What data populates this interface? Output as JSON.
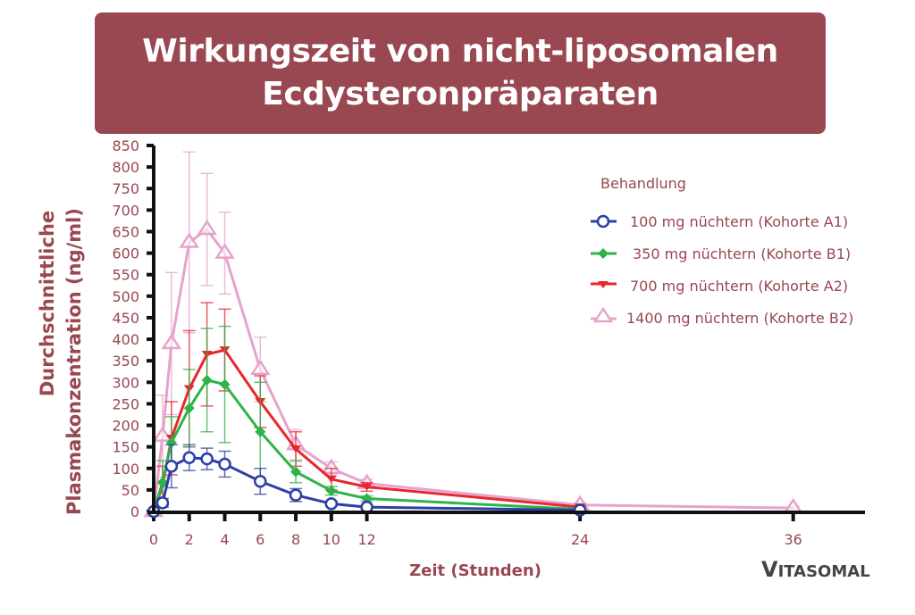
{
  "title": {
    "line1": "Wirkungszeit von nicht-liposomalen",
    "line2": "Ecdysteronpräparaten"
  },
  "axes": {
    "ylabel_line1": "Durchschnittliche",
    "ylabel_line2": "Plasmakonzentration (ng/ml)",
    "xlabel": "Zeit (Stunden)",
    "yticks": [
      "0",
      "50",
      "100",
      "150",
      "200",
      "250",
      "300",
      "350",
      "400",
      "450",
      "500",
      "550",
      "600",
      "650",
      "700",
      "750",
      "800",
      "850"
    ],
    "xticks": [
      "0",
      "2",
      "4",
      "6",
      "8",
      "10",
      "12",
      "24",
      "36"
    ]
  },
  "legend": {
    "title": "Behandlung",
    "items": [
      {
        "label": "100 mg nüchtern (Kohorte A1)",
        "color": "#2b3fa6",
        "marker": "circle"
      },
      {
        "label": "350 mg nüchtern (Kohorte B1)",
        "color": "#2fb34a",
        "marker": "diamond"
      },
      {
        "label": "700 mg nüchtern (Kohorte A2)",
        "color": "#e8262d",
        "marker": "triangle-down"
      },
      {
        "label": "1400 mg nüchtern (Kohorte B2)",
        "color": "#e6a3cc",
        "marker": "triangle-up"
      }
    ]
  },
  "brand": {
    "logo": "VITASOMAL"
  },
  "chart_data": {
    "type": "line",
    "title": "Wirkungszeit von nicht-liposomalen Ecdysteronpräparaten",
    "xlabel": "Zeit (Stunden)",
    "ylabel": "Durchschnittliche Plasmakonzentration (ng/ml)",
    "xlim": [
      0,
      40
    ],
    "ylim": [
      0,
      850
    ],
    "grid": false,
    "legend_position": "upper right",
    "legend_title": "Behandlung",
    "series": [
      {
        "name": "100 mg nüchtern (Kohorte A1)",
        "color": "#2b3fa6",
        "x": [
          0,
          0.5,
          1,
          2,
          3,
          4,
          6,
          8,
          10,
          12,
          24
        ],
        "y": [
          0,
          20,
          105,
          125,
          122,
          110,
          70,
          38,
          18,
          10,
          3
        ],
        "err": [
          0,
          10,
          50,
          30,
          25,
          30,
          30,
          15,
          5,
          4,
          2
        ]
      },
      {
        "name": "350 mg nüchtern (Kohorte B1)",
        "color": "#2fb34a",
        "x": [
          0,
          0.5,
          1,
          2,
          3,
          4,
          6,
          8,
          10,
          12,
          24
        ],
        "y": [
          0,
          68,
          160,
          240,
          305,
          295,
          185,
          92,
          48,
          30,
          5
        ],
        "err": [
          0,
          50,
          60,
          90,
          120,
          135,
          115,
          25,
          10,
          6,
          2
        ]
      },
      {
        "name": "700 mg nüchtern (Kohorte A2)",
        "color": "#e8262d",
        "x": [
          0,
          0.5,
          1,
          2,
          3,
          4,
          6,
          8,
          10,
          12,
          24
        ],
        "y": [
          0,
          60,
          170,
          285,
          365,
          375,
          255,
          145,
          75,
          57,
          10
        ],
        "err": [
          0,
          45,
          85,
          135,
          120,
          95,
          60,
          40,
          25,
          10,
          4
        ]
      },
      {
        "name": "1400 mg nüchtern (Kohorte B2)",
        "color": "#e6a3cc",
        "x": [
          0,
          0.5,
          1,
          2,
          3,
          4,
          6,
          8,
          10,
          12,
          24,
          36
        ],
        "y": [
          0,
          175,
          390,
          625,
          655,
          600,
          330,
          155,
          100,
          65,
          15,
          8
        ],
        "err": [
          0,
          95,
          165,
          210,
          130,
          95,
          75,
          35,
          15,
          10,
          5,
          3
        ]
      }
    ]
  }
}
